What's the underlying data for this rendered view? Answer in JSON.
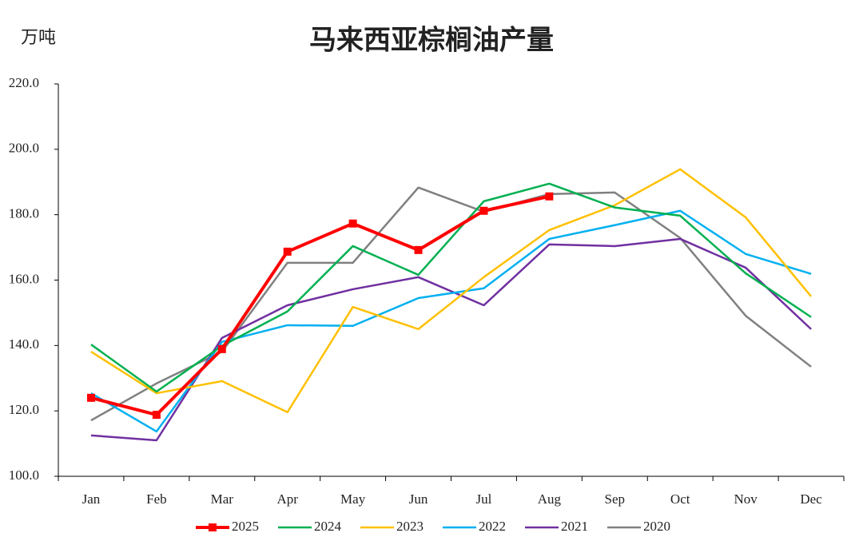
{
  "chart_data": {
    "type": "line",
    "title": "马来西亚棕榈油产量",
    "y_label": "万吨",
    "categories": [
      "Jan",
      "Feb",
      "Mar",
      "Apr",
      "May",
      "Jun",
      "Jul",
      "Aug",
      "Sep",
      "Oct",
      "Nov",
      "Dec"
    ],
    "ylim": [
      100,
      220
    ],
    "yticks": [
      {
        "value": 100,
        "label": "100.0"
      },
      {
        "value": 120,
        "label": "120.0"
      },
      {
        "value": 140,
        "label": "140.0"
      },
      {
        "value": 160,
        "label": "160.0"
      },
      {
        "value": 180,
        "label": "180.0"
      },
      {
        "value": 200,
        "label": "200.0"
      },
      {
        "value": 220,
        "label": "220.0"
      }
    ],
    "grid": false,
    "legend": "bottom",
    "series": [
      {
        "name": "2025",
        "color": "#ff0000",
        "marker": "square",
        "values": [
          124,
          118.8,
          138.9,
          168.7,
          177.3,
          169.2,
          181.2,
          185.6,
          null,
          null,
          null,
          null
        ]
      },
      {
        "name": "2024",
        "color": "#00b050",
        "values": [
          140.3,
          125.9,
          139.9,
          150.4,
          170.4,
          161.6,
          184.1,
          189.5,
          182.2,
          179.7,
          162.1,
          148.7
        ]
      },
      {
        "name": "2023",
        "color": "#ffc000",
        "values": [
          138.1,
          125.4,
          129.1,
          119.6,
          151.8,
          145,
          160.9,
          175.3,
          182.9,
          193.9,
          179.2,
          155
        ]
      },
      {
        "name": "2022",
        "color": "#00b0f0",
        "values": [
          125.4,
          113.7,
          141.1,
          146.2,
          146,
          154.5,
          157.5,
          172.6,
          176.8,
          181.2,
          168,
          161.9
        ]
      },
      {
        "name": "2021",
        "color": "#7030a0",
        "values": [
          112.5,
          111,
          142.3,
          152.3,
          157.2,
          160.9,
          152.3,
          170.9,
          170.4,
          172.6,
          163.8,
          145
        ]
      },
      {
        "name": "2020",
        "color": "#808080",
        "values": [
          117.1,
          128.4,
          138.1,
          165.3,
          165.3,
          188.3,
          180.9,
          186.3,
          186.8,
          172.9,
          149.1,
          133.5
        ]
      }
    ]
  }
}
